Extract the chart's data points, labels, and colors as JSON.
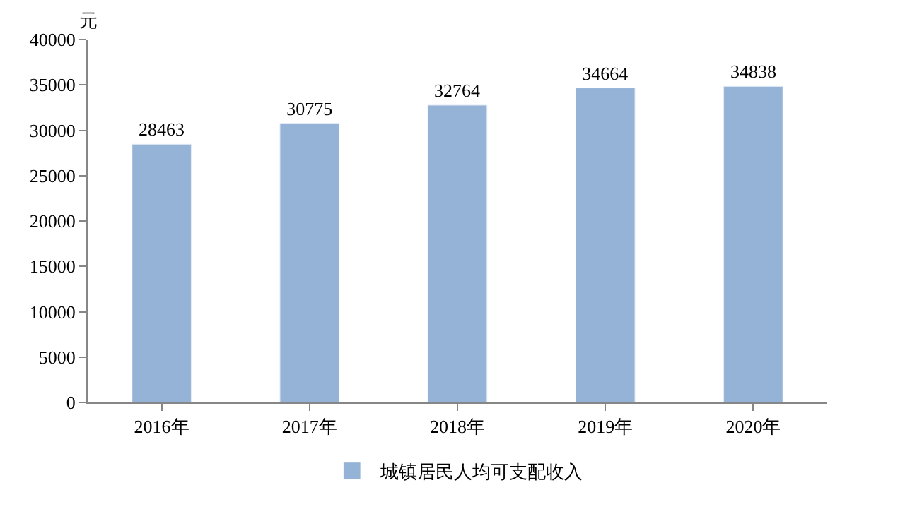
{
  "chart_data": {
    "type": "bar",
    "ylabel": "元",
    "categories": [
      "2016年",
      "2017年",
      "2018年",
      "2019年",
      "2020年"
    ],
    "series": [
      {
        "name": "城镇居民人均可支配收入",
        "color": "#95b3d7",
        "values": [
          28463,
          30775,
          32764,
          34664,
          34838
        ]
      }
    ],
    "ylim": [
      0,
      40000
    ],
    "yticks": [
      0,
      5000,
      10000,
      15000,
      20000,
      25000,
      30000,
      35000,
      40000
    ],
    "data_labels": true,
    "legend": "bottom",
    "grid": false
  }
}
